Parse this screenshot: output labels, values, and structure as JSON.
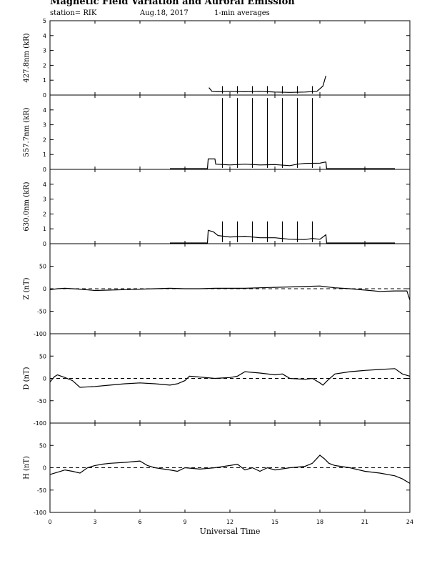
{
  "header": {
    "title": "Magnetic Field Variation and Auroral Emission",
    "station": "station= RIK",
    "date": "Aug.18, 2017",
    "averaging": "1-min averages"
  },
  "chart_data": [
    {
      "type": "line",
      "ylabel": "427.8nm (kR)",
      "ylim": [
        0,
        5
      ],
      "yticks": [
        0,
        1,
        2,
        3,
        4,
        5
      ],
      "xlim": [
        0,
        24
      ],
      "xticks": [
        0,
        3,
        6,
        9,
        12,
        15,
        18,
        21,
        24
      ],
      "series": [
        {
          "x": [
            10.6,
            10.8,
            11.2,
            12,
            13,
            14,
            15,
            16,
            17,
            17.8,
            18.2,
            18.4
          ],
          "y": [
            0.5,
            0.25,
            0.22,
            0.25,
            0.22,
            0.25,
            0.2,
            0.18,
            0.2,
            0.25,
            0.6,
            1.3
          ]
        }
      ],
      "spikes": {
        "x": [
          11.5,
          12.5,
          13.5,
          14.5,
          15.5,
          16.5,
          17.5
        ],
        "height": 0.6
      }
    },
    {
      "type": "line",
      "ylabel": "557.7nm (kR)",
      "ylim": [
        0,
        5
      ],
      "yticks": [
        0,
        1,
        2,
        3,
        4
      ],
      "xlim": [
        0,
        24
      ],
      "series": [
        {
          "x": [
            8,
            10.5,
            10.55,
            11.0,
            11.05,
            12,
            13,
            14,
            15,
            16,
            16.5,
            17,
            18,
            18.4,
            18.45,
            23
          ],
          "y": [
            0.05,
            0.05,
            0.7,
            0.7,
            0.35,
            0.3,
            0.35,
            0.3,
            0.32,
            0.25,
            0.35,
            0.4,
            0.42,
            0.5,
            0.05,
            0.05
          ]
        }
      ],
      "spikes": {
        "x": [
          11.5,
          12.5,
          13.5,
          14.5,
          15.5,
          16.5,
          17.5
        ],
        "height": 4.8
      }
    },
    {
      "type": "line",
      "ylabel": "630.0nm (kR)",
      "ylim": [
        0,
        5
      ],
      "yticks": [
        0,
        1,
        2,
        3,
        4
      ],
      "xlim": [
        0,
        24
      ],
      "series": [
        {
          "x": [
            8,
            10.5,
            10.55,
            10.9,
            11.2,
            12,
            13,
            14,
            15,
            16,
            17,
            17.5,
            18,
            18.4,
            18.45,
            23
          ],
          "y": [
            0.05,
            0.05,
            0.9,
            0.8,
            0.55,
            0.45,
            0.5,
            0.4,
            0.4,
            0.3,
            0.28,
            0.35,
            0.3,
            0.6,
            0.05,
            0.05
          ]
        }
      ],
      "spikes": {
        "x": [
          11.5,
          12.5,
          13.5,
          14.5,
          15.5,
          16.5,
          17.5
        ],
        "height": 1.5
      }
    },
    {
      "type": "line",
      "ylabel": "Z (nT)",
      "ylim": [
        -100,
        100
      ],
      "yticks": [
        -100,
        -50,
        0,
        50
      ],
      "xlim": [
        0,
        24
      ],
      "zero_line": "dashed",
      "series": [
        {
          "x": [
            0,
            0.5,
            1,
            2,
            3,
            4,
            5,
            6,
            7,
            8,
            9,
            10,
            11,
            12,
            13,
            14,
            15,
            16,
            17,
            18,
            18.5,
            19,
            20,
            21,
            22,
            23,
            23.8,
            24
          ],
          "y": [
            -2,
            0,
            1,
            -1,
            -4,
            -3,
            -2,
            -1,
            0,
            1,
            0,
            0,
            1,
            1,
            1,
            2,
            3,
            4,
            5,
            6,
            4,
            2,
            0,
            -3,
            -6,
            -5,
            -5,
            -25
          ]
        }
      ]
    },
    {
      "type": "line",
      "ylabel": "D (nT)",
      "ylim": [
        -100,
        100
      ],
      "yticks": [
        -100,
        -50,
        0,
        50
      ],
      "xlim": [
        0,
        24
      ],
      "zero_line": "dashed",
      "series": [
        {
          "x": [
            0,
            0.3,
            0.5,
            1,
            1.5,
            2,
            3,
            4,
            5,
            6,
            7,
            8,
            8.5,
            9,
            9.3,
            10,
            11,
            11.5,
            12,
            12.5,
            13,
            14,
            15,
            15.5,
            16,
            17,
            17.5,
            18,
            18.2,
            18.5,
            19,
            20,
            21,
            22,
            23,
            23.5,
            24
          ],
          "y": [
            -8,
            4,
            8,
            2,
            -5,
            -20,
            -18,
            -15,
            -12,
            -10,
            -12,
            -15,
            -12,
            -5,
            5,
            3,
            0,
            1,
            2,
            5,
            15,
            12,
            8,
            10,
            0,
            -2,
            0,
            -10,
            -15,
            -5,
            10,
            15,
            18,
            20,
            22,
            10,
            5
          ]
        }
      ]
    },
    {
      "type": "line",
      "ylabel": "H (nT)",
      "ylim": [
        -100,
        100
      ],
      "yticks": [
        -100,
        -50,
        0,
        50
      ],
      "xlim": [
        0,
        24
      ],
      "xlabel": "Universal Time",
      "zero_line": "dashed",
      "series": [
        {
          "x": [
            0,
            0.5,
            1,
            1.5,
            2,
            2.5,
            3,
            3.5,
            4,
            5,
            6,
            6.5,
            7,
            8,
            8.5,
            9,
            10,
            11,
            12,
            12.5,
            13,
            13.5,
            14,
            14.5,
            15,
            16,
            17,
            17.5,
            18,
            18.3,
            18.6,
            19,
            20,
            21,
            22,
            23,
            23.5,
            24
          ],
          "y": [
            -15,
            -10,
            -5,
            -8,
            -12,
            0,
            5,
            8,
            10,
            12,
            15,
            5,
            0,
            -5,
            -8,
            0,
            -3,
            0,
            5,
            8,
            -5,
            0,
            -8,
            0,
            -5,
            0,
            3,
            10,
            28,
            20,
            10,
            5,
            0,
            -8,
            -12,
            -18,
            -25,
            -35
          ]
        }
      ]
    }
  ]
}
